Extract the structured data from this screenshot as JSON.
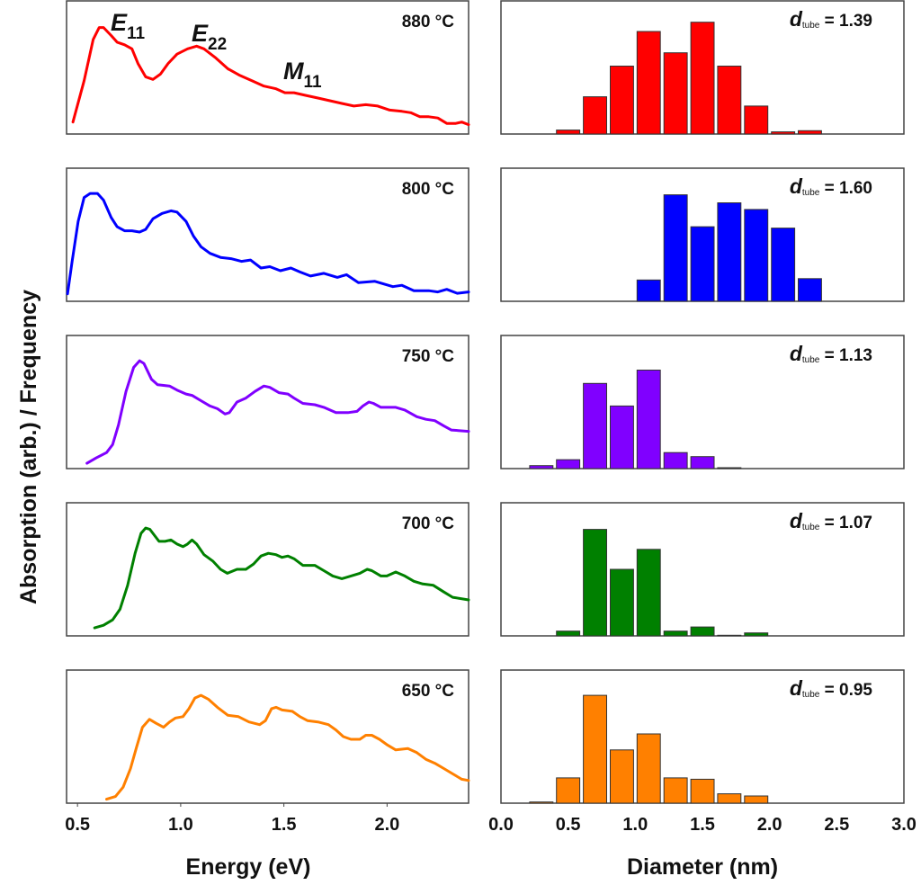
{
  "chart_data": [
    {
      "type": "line",
      "xlabel": "Energy (eV)",
      "ylabel": "Absorption (arb.) / Frequency",
      "xlim": [
        0.447,
        2.395
      ],
      "xticks": [
        "0.5",
        "1.0",
        "1.5",
        "2.0"
      ],
      "xtick_values": [
        0.5,
        1.0,
        1.5,
        2.0
      ],
      "grid": false,
      "annotations": [
        {
          "main": "E",
          "sub": "11"
        },
        {
          "main": "E",
          "sub": "22"
        },
        {
          "main": "M",
          "sub": "11"
        }
      ],
      "panels": [
        {
          "label": "880 °C",
          "color": "#ff0000",
          "x": [
            0.478,
            0.532,
            0.576,
            0.605,
            0.626,
            0.663,
            0.692,
            0.728,
            0.764,
            0.793,
            0.83,
            0.866,
            0.902,
            0.939,
            0.982,
            1.033,
            1.077,
            1.113,
            1.171,
            1.229,
            1.287,
            1.345,
            1.403,
            1.462,
            1.505,
            1.549,
            1.607,
            1.665,
            1.723,
            1.781,
            1.839,
            1.897,
            1.955,
            2.013,
            2.072,
            2.115,
            2.159,
            2.202,
            2.246,
            2.289,
            2.333,
            2.362,
            2.395
          ],
          "y": [
            0.09,
            0.4,
            0.71,
            0.8,
            0.8,
            0.74,
            0.69,
            0.67,
            0.64,
            0.53,
            0.43,
            0.41,
            0.45,
            0.53,
            0.6,
            0.64,
            0.66,
            0.64,
            0.57,
            0.49,
            0.44,
            0.4,
            0.36,
            0.34,
            0.31,
            0.31,
            0.29,
            0.27,
            0.25,
            0.23,
            0.21,
            0.22,
            0.21,
            0.18,
            0.17,
            0.16,
            0.13,
            0.13,
            0.12,
            0.08,
            0.08,
            0.09,
            0.07
          ]
        },
        {
          "label": "800 °C",
          "color": "#0000ff",
          "x": [
            0.452,
            0.474,
            0.503,
            0.532,
            0.561,
            0.597,
            0.626,
            0.663,
            0.692,
            0.728,
            0.764,
            0.801,
            0.83,
            0.866,
            0.91,
            0.953,
            0.982,
            1.026,
            1.062,
            1.098,
            1.142,
            1.193,
            1.244,
            1.294,
            1.338,
            1.389,
            1.432,
            1.483,
            1.534,
            1.578,
            1.629,
            1.694,
            1.759,
            1.803,
            1.861,
            1.941,
            2.028,
            2.072,
            2.13,
            2.202,
            2.246,
            2.289,
            2.34,
            2.395
          ],
          "y": [
            0.056,
            0.3,
            0.6,
            0.78,
            0.81,
            0.81,
            0.76,
            0.63,
            0.56,
            0.53,
            0.53,
            0.52,
            0.54,
            0.62,
            0.66,
            0.68,
            0.67,
            0.6,
            0.49,
            0.41,
            0.36,
            0.33,
            0.32,
            0.3,
            0.31,
            0.25,
            0.26,
            0.23,
            0.25,
            0.22,
            0.19,
            0.21,
            0.18,
            0.2,
            0.14,
            0.15,
            0.11,
            0.12,
            0.08,
            0.08,
            0.07,
            0.09,
            0.06,
            0.07
          ]
        },
        {
          "label": "750 °C",
          "color": "#8000ff",
          "x": [
            0.546,
            0.59,
            0.641,
            0.67,
            0.699,
            0.735,
            0.772,
            0.801,
            0.822,
            0.859,
            0.888,
            0.946,
            0.982,
            1.026,
            1.055,
            1.098,
            1.142,
            1.178,
            1.215,
            1.236,
            1.273,
            1.316,
            1.36,
            1.403,
            1.432,
            1.476,
            1.52,
            1.549,
            1.592,
            1.65,
            1.694,
            1.752,
            1.81,
            1.854,
            1.883,
            1.912,
            1.934,
            1.97,
            2.042,
            2.086,
            2.144,
            2.188,
            2.231,
            2.275,
            2.311,
            2.395
          ],
          "y": [
            0.04,
            0.08,
            0.12,
            0.18,
            0.33,
            0.58,
            0.76,
            0.81,
            0.79,
            0.67,
            0.63,
            0.62,
            0.59,
            0.56,
            0.55,
            0.51,
            0.47,
            0.45,
            0.41,
            0.42,
            0.5,
            0.53,
            0.58,
            0.62,
            0.61,
            0.57,
            0.56,
            0.53,
            0.49,
            0.48,
            0.46,
            0.42,
            0.42,
            0.43,
            0.47,
            0.5,
            0.49,
            0.46,
            0.46,
            0.44,
            0.39,
            0.37,
            0.36,
            0.32,
            0.29,
            0.28
          ]
        },
        {
          "label": "700 °C",
          "color": "#008000",
          "x": [
            0.583,
            0.626,
            0.67,
            0.706,
            0.743,
            0.779,
            0.808,
            0.83,
            0.851,
            0.895,
            0.924,
            0.953,
            0.982,
            1.011,
            1.033,
            1.055,
            1.077,
            1.113,
            1.157,
            1.193,
            1.226,
            1.273,
            1.316,
            1.353,
            1.389,
            1.425,
            1.462,
            1.491,
            1.52,
            1.549,
            1.592,
            1.65,
            1.694,
            1.737,
            1.781,
            1.825,
            1.868,
            1.904,
            1.926,
            1.97,
            1.999,
            2.042,
            2.086,
            2.13,
            2.173,
            2.224,
            2.275,
            2.318,
            2.395
          ],
          "y": [
            0.06,
            0.08,
            0.12,
            0.2,
            0.38,
            0.62,
            0.77,
            0.81,
            0.8,
            0.71,
            0.71,
            0.72,
            0.69,
            0.67,
            0.69,
            0.72,
            0.69,
            0.61,
            0.56,
            0.5,
            0.47,
            0.5,
            0.5,
            0.54,
            0.6,
            0.62,
            0.61,
            0.59,
            0.6,
            0.58,
            0.53,
            0.53,
            0.49,
            0.45,
            0.43,
            0.45,
            0.47,
            0.5,
            0.49,
            0.45,
            0.45,
            0.48,
            0.45,
            0.41,
            0.39,
            0.38,
            0.33,
            0.29,
            0.27
          ]
        },
        {
          "label": "650 °C",
          "color": "#ff8000",
          "x": [
            0.641,
            0.684,
            0.721,
            0.757,
            0.786,
            0.815,
            0.849,
            0.881,
            0.917,
            0.946,
            0.975,
            1.011,
            1.04,
            1.069,
            1.098,
            1.135,
            1.178,
            1.229,
            1.28,
            1.331,
            1.382,
            1.411,
            1.44,
            1.462,
            1.491,
            1.541,
            1.578,
            1.614,
            1.665,
            1.716,
            1.752,
            1.788,
            1.825,
            1.868,
            1.897,
            1.926,
            1.963,
            1.999,
            2.042,
            2.101,
            2.144,
            2.188,
            2.231,
            2.275,
            2.318,
            2.362,
            2.395
          ],
          "y": [
            0.03,
            0.05,
            0.12,
            0.26,
            0.42,
            0.57,
            0.63,
            0.6,
            0.57,
            0.61,
            0.64,
            0.65,
            0.71,
            0.79,
            0.81,
            0.78,
            0.72,
            0.66,
            0.65,
            0.61,
            0.59,
            0.62,
            0.71,
            0.72,
            0.7,
            0.69,
            0.65,
            0.62,
            0.61,
            0.59,
            0.55,
            0.5,
            0.48,
            0.48,
            0.51,
            0.51,
            0.48,
            0.44,
            0.4,
            0.41,
            0.38,
            0.33,
            0.3,
            0.26,
            0.22,
            0.18,
            0.17
          ]
        }
      ]
    },
    {
      "type": "bar",
      "xlabel": "Diameter (nm)",
      "xlim": [
        0.0,
        3.0
      ],
      "xticks": [
        "0.0",
        "0.5",
        "1.0",
        "1.5",
        "2.0",
        "2.5",
        "3.0"
      ],
      "xtick_values": [
        0.0,
        0.5,
        1.0,
        1.5,
        2.0,
        2.5,
        3.0
      ],
      "bin_width": 0.2,
      "grid": false,
      "panels": [
        {
          "label_var": "d",
          "label_sub": "tube",
          "label_value": "= 1.39",
          "color": "#ff0000",
          "categories": [
            0.5,
            0.7,
            0.9,
            1.1,
            1.3,
            1.5,
            1.7,
            1.9,
            2.1,
            2.3
          ],
          "values": [
            0.03,
            0.28,
            0.51,
            0.77,
            0.61,
            0.84,
            0.51,
            0.21,
            0.016,
            0.025
          ]
        },
        {
          "label_var": "d",
          "label_sub": "tube",
          "label_value": "= 1.60",
          "color": "#0000ff",
          "categories": [
            1.1,
            1.3,
            1.5,
            1.7,
            1.9,
            2.1,
            2.3
          ],
          "values": [
            0.16,
            0.8,
            0.56,
            0.74,
            0.69,
            0.55,
            0.17
          ]
        },
        {
          "label_var": "d",
          "label_sub": "tube",
          "label_value": "= 1.13",
          "color": "#8000ff",
          "categories": [
            0.3,
            0.5,
            0.7,
            0.9,
            1.1,
            1.3,
            1.5,
            1.7
          ],
          "values": [
            0.022,
            0.067,
            0.64,
            0.47,
            0.74,
            0.12,
            0.09,
            0.007
          ]
        },
        {
          "label_var": "d",
          "label_sub": "tube",
          "label_value": "= 1.07",
          "color": "#008000",
          "categories": [
            0.5,
            0.7,
            0.9,
            1.1,
            1.3,
            1.5,
            1.7,
            1.9
          ],
          "values": [
            0.036,
            0.8,
            0.5,
            0.65,
            0.036,
            0.067,
            0.005,
            0.022
          ]
        },
        {
          "label_var": "d",
          "label_sub": "tube",
          "label_value": "= 0.95",
          "color": "#ff8000",
          "categories": [
            0.3,
            0.5,
            0.7,
            0.9,
            1.1,
            1.3,
            1.5,
            1.7,
            1.9
          ],
          "values": [
            0.009,
            0.19,
            0.81,
            0.4,
            0.52,
            0.19,
            0.18,
            0.07,
            0.054
          ]
        }
      ]
    }
  ]
}
